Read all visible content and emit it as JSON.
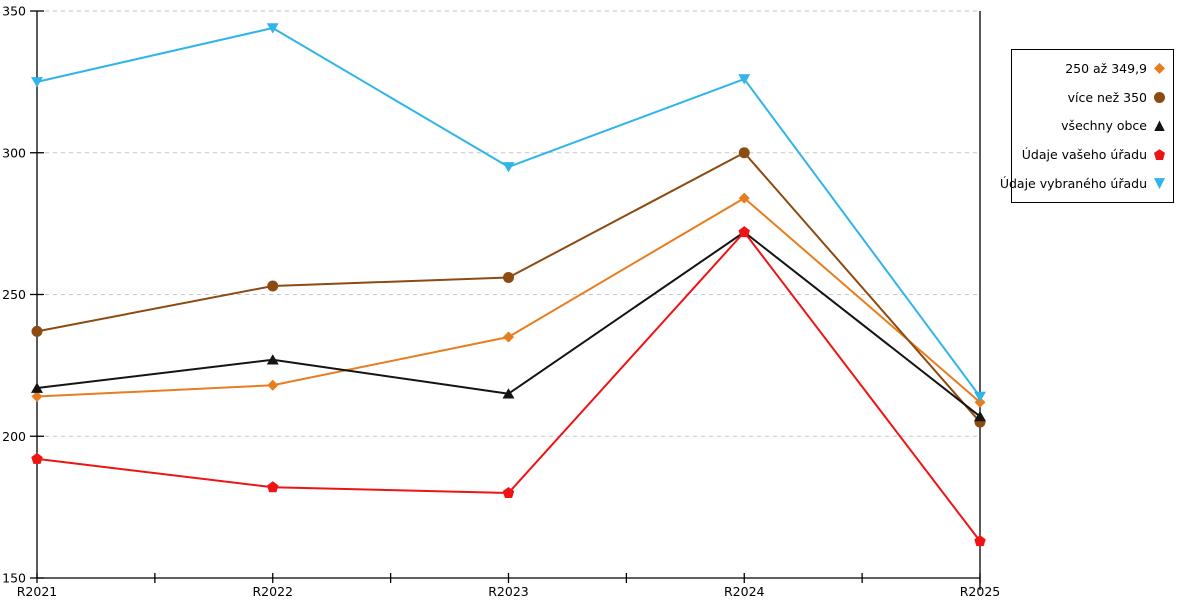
{
  "chart_data": {
    "type": "line",
    "title": "",
    "xlabel": "",
    "ylabel": "",
    "categories": [
      "R2021",
      "R2022",
      "R2023",
      "R2024",
      "R2025"
    ],
    "series": [
      {
        "name": "250 až 349,9",
        "marker": "diamond",
        "color": "#E87D1E",
        "values": [
          214,
          218,
          235,
          284,
          212
        ]
      },
      {
        "name": "více než 350",
        "marker": "circle",
        "color": "#8C4B10",
        "values": [
          237,
          253,
          256,
          300,
          205
        ]
      },
      {
        "name": "všechny obce",
        "marker": "triangle-up",
        "color": "#141414",
        "values": [
          217,
          227,
          215,
          272,
          207
        ]
      },
      {
        "name": "Údaje vašeho úřadu",
        "marker": "pentagon",
        "color": "#EE1414",
        "values": [
          192,
          182,
          180,
          272,
          163
        ]
      },
      {
        "name": "Údaje vybraného úřadu",
        "marker": "triangle-down",
        "color": "#30B4EA",
        "values": [
          325,
          344,
          295,
          326,
          214
        ]
      }
    ],
    "ylim": [
      150,
      350
    ],
    "yticks": [
      150,
      200,
      250,
      300,
      350
    ],
    "grid": "horizontal-dashed",
    "legend_position": "right-outside"
  },
  "colors": {
    "axis": "#000000",
    "grid": "#C6C6C6",
    "background": "#FFFFFF",
    "text": "#000000"
  }
}
